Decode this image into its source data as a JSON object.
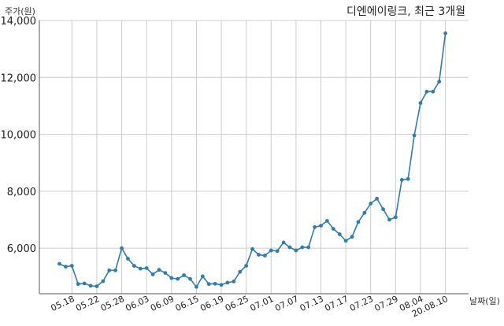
{
  "chart_data": {
    "type": "line",
    "title": "디엔에이링크, 최근 3개월",
    "ylabel": "주가(원)",
    "xlabel": "날짜(일)",
    "ylim": [
      4400,
      14000
    ],
    "yticks": [
      6000,
      8000,
      10000,
      12000,
      14000
    ],
    "ytick_labels": [
      "6,000",
      "8,000",
      "10,000",
      "12,000",
      "14,000"
    ],
    "grid": true,
    "line_color": "#2e7cb0",
    "x": [
      "05.14",
      "05.15",
      "05.18",
      "05.19",
      "05.20",
      "05.21",
      "05.22",
      "05.25",
      "05.26",
      "05.27",
      "05.28",
      "05.29",
      "06.01",
      "06.02",
      "06.03",
      "06.04",
      "06.05",
      "06.08",
      "06.09",
      "06.10",
      "06.11",
      "06.12",
      "06.15",
      "06.16",
      "06.17",
      "06.18",
      "06.19",
      "06.22",
      "06.23",
      "06.24",
      "06.25",
      "06.26",
      "06.29",
      "06.30",
      "07.01",
      "07.02",
      "07.03",
      "07.06",
      "07.07",
      "07.08",
      "07.09",
      "07.10",
      "07.13",
      "07.14",
      "07.15",
      "07.16",
      "07.17",
      "07.20",
      "07.21",
      "07.22",
      "07.23",
      "07.24",
      "07.27",
      "07.28",
      "07.29",
      "07.30",
      "07.31",
      "08.03",
      "08.04",
      "08.05",
      "08.06",
      "08.07",
      "08.10"
    ],
    "values": [
      5450,
      5350,
      5380,
      4740,
      4760,
      4680,
      4660,
      4840,
      5220,
      5220,
      6000,
      5630,
      5380,
      5280,
      5300,
      5080,
      5240,
      5130,
      4950,
      4920,
      5050,
      4920,
      4640,
      5010,
      4740,
      4750,
      4710,
      4790,
      4830,
      5170,
      5380,
      5970,
      5770,
      5740,
      5920,
      5900,
      6200,
      6030,
      5920,
      6030,
      6030,
      6740,
      6790,
      6960,
      6680,
      6490,
      6260,
      6400,
      6920,
      7240,
      7570,
      7740,
      7370,
      7000,
      7090,
      8400,
      8430,
      9960,
      11100,
      11500,
      11500,
      11850,
      13550
    ],
    "xtick_labels": [
      "05.18",
      "05.22",
      "05.28",
      "06.03",
      "06.09",
      "06.15",
      "06.19",
      "06.25",
      "07.01",
      "07.07",
      "07.13",
      "07.17",
      "07.23",
      "07.29",
      "08.04",
      "20.08.10"
    ],
    "xtick_index": [
      2,
      6,
      10,
      14,
      18,
      22,
      26,
      30,
      34,
      38,
      42,
      46,
      50,
      54,
      58,
      62
    ]
  }
}
